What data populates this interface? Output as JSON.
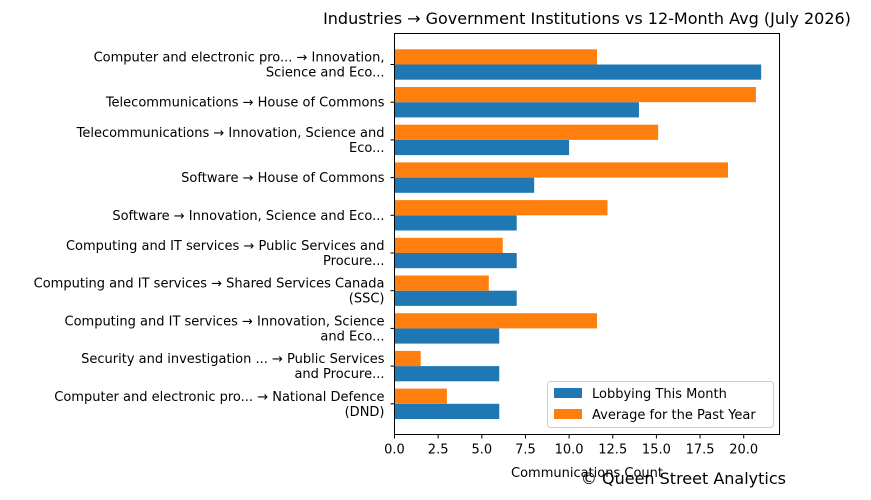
{
  "chart_data": {
    "type": "bar",
    "orientation": "horizontal",
    "title": "Industries → Government Institutions vs 12-Month Avg (July 2026)",
    "xlabel": "Communications Count",
    "ylabel": "",
    "xlim": [
      0,
      22.05
    ],
    "xticks": [
      "0.0",
      "2.5",
      "5.0",
      "7.5",
      "10.0",
      "12.5",
      "15.0",
      "17.5",
      "20.0"
    ],
    "grid": false,
    "legend_position": "lower-right",
    "categories": [
      [
        "Computer and electronic pro... → Innovation,",
        "Science and Eco..."
      ],
      [
        "Telecommunications → House of Commons"
      ],
      [
        "Telecommunications → Innovation, Science and",
        "Eco..."
      ],
      [
        "Software → House of Commons"
      ],
      [
        "Software → Innovation, Science and Eco..."
      ],
      [
        "Computing and IT services → Public Services and",
        "Procure..."
      ],
      [
        "Computing and IT services → Shared Services Canada",
        "(SSC)"
      ],
      [
        "Computing and IT services → Innovation, Science",
        "and Eco..."
      ],
      [
        "Security and investigation ... → Public Services",
        "and Procure..."
      ],
      [
        "Computer and electronic pro... → National Defence",
        "(DND)"
      ]
    ],
    "series": [
      {
        "name": "Lobbying This Month",
        "color": "#1f77b4",
        "values": [
          21,
          14,
          10,
          8,
          7,
          7,
          7,
          6,
          6,
          6
        ]
      },
      {
        "name": "Average for the Past Year",
        "color": "#ff7f0e",
        "values": [
          11.6,
          20.7,
          15.1,
          19.1,
          12.2,
          6.2,
          5.4,
          11.6,
          1.5,
          3.0
        ]
      }
    ]
  },
  "watermark": "© Queen Street Analytics"
}
